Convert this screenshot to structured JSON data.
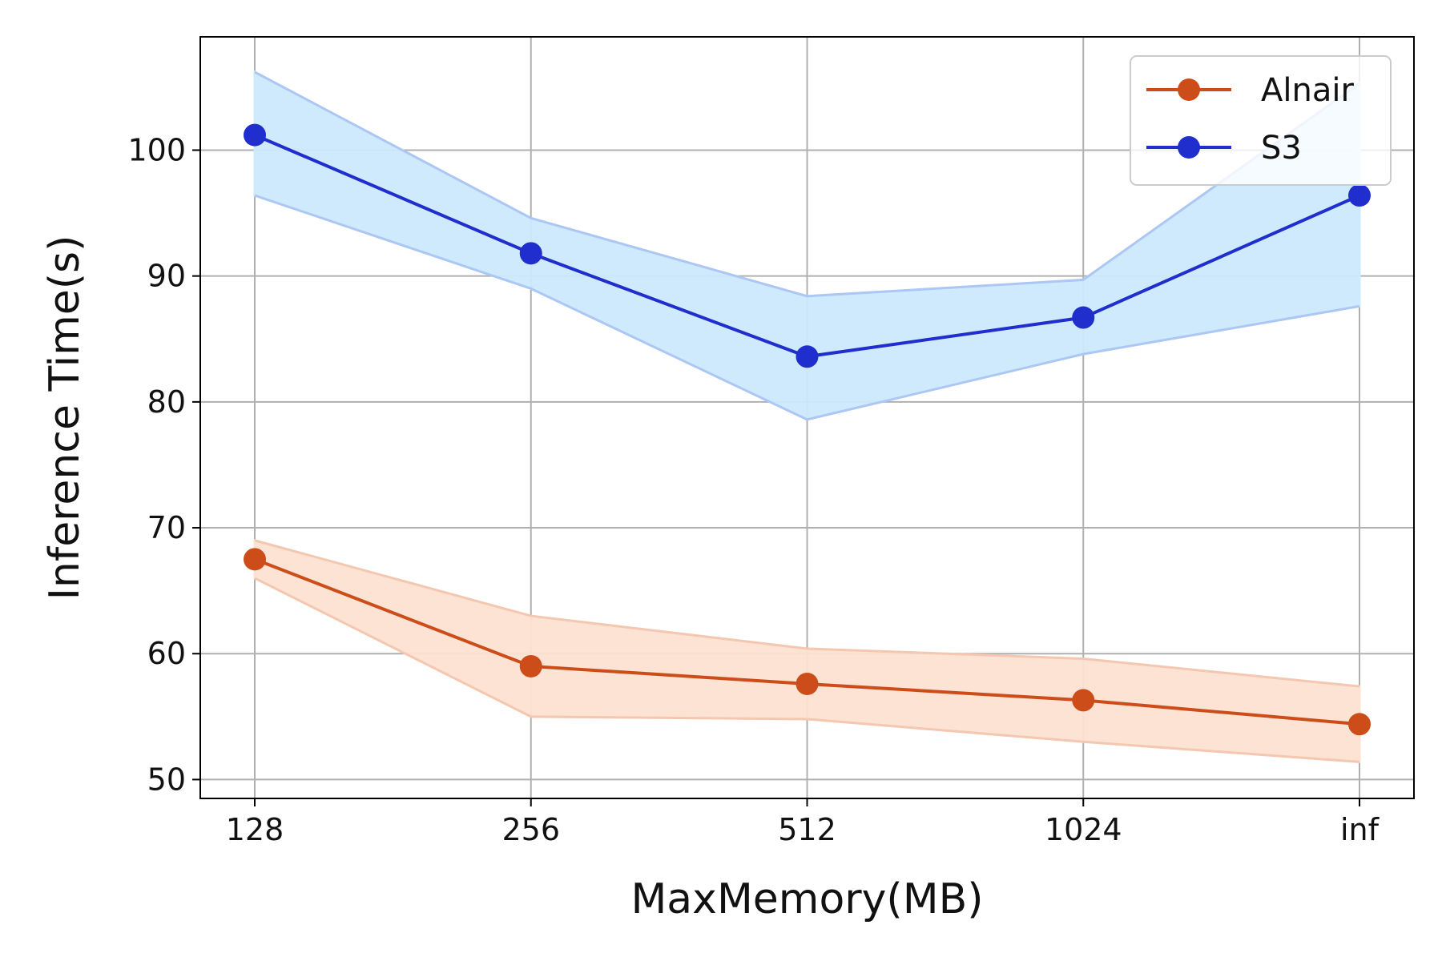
{
  "chart_data": {
    "type": "line",
    "title": "",
    "xlabel": "MaxMemory(MB)",
    "ylabel": "Inference Time(s)",
    "categories": [
      "128",
      "256",
      "512",
      "1024",
      "inf"
    ],
    "ylim": [
      48.5,
      109
    ],
    "yticks": [
      50,
      60,
      70,
      80,
      90,
      100
    ],
    "grid": true,
    "legend_position": "top-right",
    "series": [
      {
        "name": "Alnair",
        "color": "#cc4d1a",
        "band_color": "#fde2d2",
        "values": [
          67.5,
          59.0,
          57.6,
          56.3,
          54.4
        ],
        "lower": [
          66.0,
          55.0,
          54.8,
          53.0,
          51.4
        ],
        "upper": [
          69.0,
          63.0,
          60.4,
          59.6,
          57.4
        ]
      },
      {
        "name": "S3",
        "color": "#1f2ecc",
        "band_color": "#cce9fd",
        "values": [
          101.2,
          91.8,
          83.6,
          86.7,
          96.4
        ],
        "lower": [
          96.4,
          89.0,
          78.6,
          83.8,
          87.6
        ],
        "upper": [
          106.2,
          94.6,
          88.4,
          89.7,
          105.3
        ]
      }
    ]
  }
}
